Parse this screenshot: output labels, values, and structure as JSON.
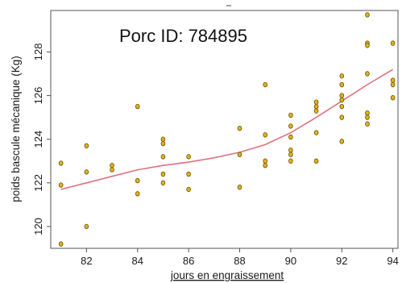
{
  "chart_data": {
    "type": "scatter",
    "title": "Porc ID: 784895",
    "xlabel": "jours en engraissement",
    "ylabel": "poids bascule mécanique (Kg)",
    "xlim": [
      80.6,
      94.2
    ],
    "ylim": [
      119.0,
      129.9
    ],
    "xticks": [
      82,
      84,
      86,
      88,
      90,
      92,
      94
    ],
    "yticks": [
      120,
      122,
      124,
      126,
      128
    ],
    "grid": false,
    "colors": {
      "point_fill": "#e0b21e",
      "point_stroke": "#6b5200",
      "smooth_line": "#e0707f"
    },
    "points": [
      {
        "x": 81,
        "y": 122.9
      },
      {
        "x": 81,
        "y": 121.9
      },
      {
        "x": 81,
        "y": 119.2
      },
      {
        "x": 82,
        "y": 123.7
      },
      {
        "x": 82,
        "y": 122.5
      },
      {
        "x": 82,
        "y": 120.0
      },
      {
        "x": 83,
        "y": 122.8
      },
      {
        "x": 83,
        "y": 122.6
      },
      {
        "x": 84,
        "y": 125.5
      },
      {
        "x": 84,
        "y": 122.1
      },
      {
        "x": 84,
        "y": 121.5
      },
      {
        "x": 85,
        "y": 124.0
      },
      {
        "x": 85,
        "y": 123.8
      },
      {
        "x": 85,
        "y": 123.2
      },
      {
        "x": 85,
        "y": 122.4
      },
      {
        "x": 85,
        "y": 122.0
      },
      {
        "x": 86,
        "y": 123.2
      },
      {
        "x": 86,
        "y": 122.4
      },
      {
        "x": 86,
        "y": 121.7
      },
      {
        "x": 88,
        "y": 124.5
      },
      {
        "x": 88,
        "y": 123.3
      },
      {
        "x": 88,
        "y": 121.8
      },
      {
        "x": 89,
        "y": 126.5
      },
      {
        "x": 89,
        "y": 124.2
      },
      {
        "x": 89,
        "y": 123.0
      },
      {
        "x": 89,
        "y": 122.8
      },
      {
        "x": 90,
        "y": 125.1
      },
      {
        "x": 90,
        "y": 124.6
      },
      {
        "x": 90,
        "y": 124.1
      },
      {
        "x": 90,
        "y": 123.5
      },
      {
        "x": 90,
        "y": 123.3
      },
      {
        "x": 90,
        "y": 123.0
      },
      {
        "x": 91,
        "y": 125.7
      },
      {
        "x": 91,
        "y": 125.5
      },
      {
        "x": 91,
        "y": 125.3
      },
      {
        "x": 91,
        "y": 124.3
      },
      {
        "x": 91,
        "y": 123.0
      },
      {
        "x": 92,
        "y": 126.9
      },
      {
        "x": 92,
        "y": 126.5
      },
      {
        "x": 92,
        "y": 126.0
      },
      {
        "x": 92,
        "y": 125.8
      },
      {
        "x": 92,
        "y": 125.5
      },
      {
        "x": 92,
        "y": 125.0
      },
      {
        "x": 92,
        "y": 123.9
      },
      {
        "x": 93,
        "y": 129.7
      },
      {
        "x": 93,
        "y": 128.4
      },
      {
        "x": 93,
        "y": 128.3
      },
      {
        "x": 93,
        "y": 127.0
      },
      {
        "x": 93,
        "y": 125.2
      },
      {
        "x": 93,
        "y": 125.0
      },
      {
        "x": 93,
        "y": 124.7
      },
      {
        "x": 94,
        "y": 128.4
      },
      {
        "x": 94,
        "y": 126.7
      },
      {
        "x": 94,
        "y": 126.5
      },
      {
        "x": 94,
        "y": 125.9
      }
    ],
    "smooth_line": [
      {
        "x": 81,
        "y": 121.7
      },
      {
        "x": 82,
        "y": 122.0
      },
      {
        "x": 83,
        "y": 122.3
      },
      {
        "x": 84,
        "y": 122.6
      },
      {
        "x": 85,
        "y": 122.8
      },
      {
        "x": 86,
        "y": 122.95
      },
      {
        "x": 87,
        "y": 123.15
      },
      {
        "x": 88,
        "y": 123.4
      },
      {
        "x": 89,
        "y": 123.75
      },
      {
        "x": 90,
        "y": 124.3
      },
      {
        "x": 91,
        "y": 125.0
      },
      {
        "x": 92,
        "y": 125.75
      },
      {
        "x": 93,
        "y": 126.5
      },
      {
        "x": 94,
        "y": 127.2
      }
    ]
  }
}
